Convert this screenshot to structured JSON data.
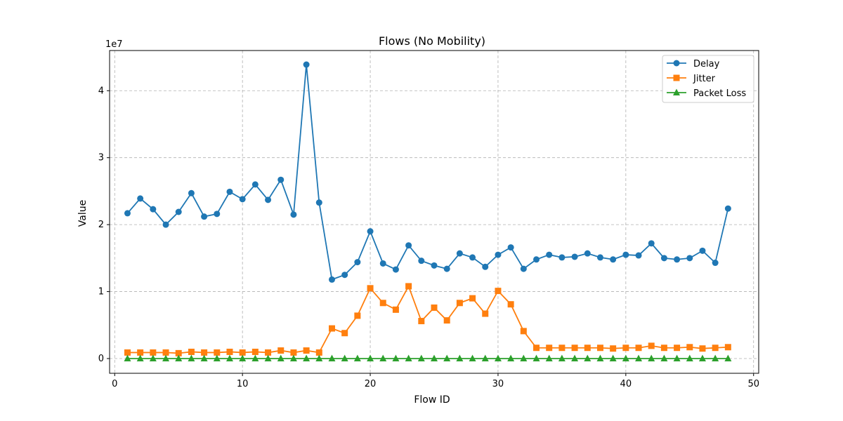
{
  "chart_data": {
    "type": "line",
    "title": "Flows (No Mobility)",
    "xlabel": "Flow ID",
    "ylabel": "Value",
    "y_multiplier_label": "1e7",
    "xlim": [
      -0.4,
      50.4
    ],
    "ylim": [
      -2200000,
      46000000
    ],
    "x_ticks": [
      0,
      10,
      20,
      30,
      40,
      50
    ],
    "y_ticks": [
      0,
      10000000,
      20000000,
      30000000,
      40000000
    ],
    "y_tick_labels": [
      "0",
      "1",
      "2",
      "3",
      "4"
    ],
    "grid": true,
    "legend_position": "top-right",
    "x": [
      1,
      2,
      3,
      4,
      5,
      6,
      7,
      8,
      9,
      10,
      11,
      12,
      13,
      14,
      15,
      16,
      17,
      18,
      19,
      20,
      21,
      22,
      23,
      24,
      25,
      26,
      27,
      28,
      29,
      30,
      31,
      32,
      33,
      34,
      35,
      36,
      37,
      38,
      39,
      40,
      41,
      42,
      43,
      44,
      45,
      46,
      47,
      48
    ],
    "series": [
      {
        "name": "Delay",
        "color": "#1f77b4",
        "marker": "circle",
        "values": [
          21700000,
          23900000,
          22300000,
          20000000,
          21900000,
          24700000,
          21200000,
          21600000,
          24900000,
          23800000,
          26000000,
          23700000,
          26700000,
          21500000,
          43900000,
          23300000,
          11800000,
          12500000,
          14400000,
          19000000,
          14200000,
          13300000,
          16900000,
          14600000,
          13900000,
          13400000,
          15700000,
          15100000,
          13700000,
          15500000,
          16600000,
          13400000,
          14800000,
          15500000,
          15100000,
          15200000,
          15700000,
          15100000,
          14800000,
          15500000,
          15400000,
          17200000,
          15000000,
          14800000,
          15000000,
          16100000,
          14300000,
          22400000
        ]
      },
      {
        "name": "Jitter",
        "color": "#ff7f0e",
        "marker": "square",
        "values": [
          900000,
          900000,
          900000,
          900000,
          800000,
          1000000,
          900000,
          900000,
          1000000,
          900000,
          1000000,
          900000,
          1200000,
          900000,
          1200000,
          900000,
          4500000,
          3800000,
          6400000,
          10500000,
          8300000,
          7300000,
          10800000,
          5600000,
          7600000,
          5700000,
          8300000,
          9000000,
          6700000,
          10100000,
          8100000,
          4100000,
          1600000,
          1600000,
          1600000,
          1600000,
          1600000,
          1600000,
          1500000,
          1600000,
          1600000,
          1900000,
          1600000,
          1600000,
          1700000,
          1500000,
          1600000,
          1700000
        ]
      },
      {
        "name": "Packet Loss",
        "color": "#2ca02c",
        "marker": "triangle",
        "values": [
          0,
          0,
          0,
          0,
          0,
          0,
          0,
          0,
          0,
          0,
          0,
          0,
          0,
          0,
          0,
          0,
          0,
          0,
          0,
          0,
          0,
          0,
          0,
          0,
          0,
          0,
          0,
          0,
          0,
          0,
          0,
          0,
          0,
          0,
          0,
          0,
          0,
          0,
          0,
          0,
          0,
          0,
          0,
          0,
          0,
          0,
          0,
          0
        ]
      }
    ]
  }
}
